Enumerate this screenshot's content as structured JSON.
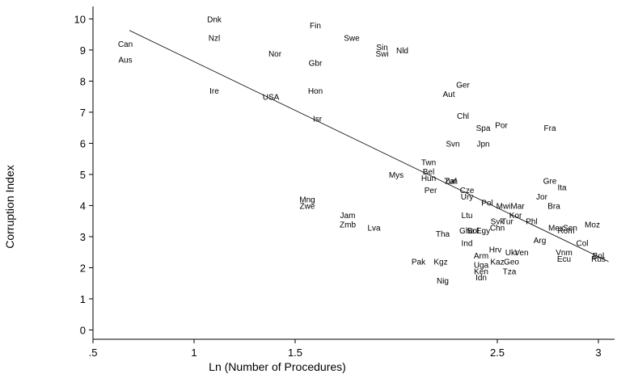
{
  "chart_data": {
    "type": "scatter",
    "title": "",
    "xlabel": "Ln (Number of Procedures)",
    "ylabel": "Corruption Index",
    "xlim": [
      0.5,
      3.08
    ],
    "ylim": [
      -0.3,
      10.4
    ],
    "x_ticks": [
      ".5",
      "1",
      "1.5",
      "2.5",
      "3"
    ],
    "y_ticks": [
      "0",
      "1",
      "2",
      "3",
      "4",
      "5",
      "6",
      "7",
      "8",
      "9",
      "10"
    ],
    "grid": false,
    "legend": "none",
    "fit_line": {
      "x": [
        0.68,
        3.05
      ],
      "y": [
        9.63,
        2.2
      ]
    },
    "points": [
      {
        "label": "Dnk",
        "x": 1.1,
        "y": 10.0
      },
      {
        "label": "Fin",
        "x": 1.6,
        "y": 9.8
      },
      {
        "label": "Nzl",
        "x": 1.1,
        "y": 9.4
      },
      {
        "label": "Swe",
        "x": 1.78,
        "y": 9.4
      },
      {
        "label": "Can",
        "x": 0.66,
        "y": 9.2
      },
      {
        "label": "Sin",
        "x": 1.93,
        "y": 9.1
      },
      {
        "label": "Swi",
        "x": 1.93,
        "y": 8.9
      },
      {
        "label": "Nld",
        "x": 2.03,
        "y": 9.0
      },
      {
        "label": "Nor",
        "x": 1.4,
        "y": 8.9
      },
      {
        "label": "Aus",
        "x": 0.66,
        "y": 8.7
      },
      {
        "label": "Gbr",
        "x": 1.6,
        "y": 8.6
      },
      {
        "label": "Ger",
        "x": 2.33,
        "y": 7.9
      },
      {
        "label": "Ire",
        "x": 1.1,
        "y": 7.7
      },
      {
        "label": "Hon",
        "x": 1.6,
        "y": 7.7
      },
      {
        "label": "USA",
        "x": 1.38,
        "y": 7.5
      },
      {
        "label": "Aut",
        "x": 2.26,
        "y": 7.6
      },
      {
        "label": "Chl",
        "x": 2.33,
        "y": 6.9
      },
      {
        "label": "Isr",
        "x": 1.61,
        "y": 6.8
      },
      {
        "label": "Spa",
        "x": 2.43,
        "y": 6.5
      },
      {
        "label": "Por",
        "x": 2.52,
        "y": 6.6
      },
      {
        "label": "Fra",
        "x": 2.76,
        "y": 6.5
      },
      {
        "label": "Svn",
        "x": 2.28,
        "y": 6.0
      },
      {
        "label": "Jpn",
        "x": 2.43,
        "y": 6.0
      },
      {
        "label": "Twn",
        "x": 2.16,
        "y": 5.4
      },
      {
        "label": "Bel",
        "x": 2.16,
        "y": 5.1
      },
      {
        "label": "Hun",
        "x": 2.16,
        "y": 4.9
      },
      {
        "label": "Mys",
        "x": 2.0,
        "y": 5.0
      },
      {
        "label": "Zaf",
        "x": 2.27,
        "y": 4.8
      },
      {
        "label": "Tun",
        "x": 2.27,
        "y": 4.8
      },
      {
        "label": "Gre",
        "x": 2.76,
        "y": 4.8
      },
      {
        "label": "Ita",
        "x": 2.82,
        "y": 4.6
      },
      {
        "label": "Cze",
        "x": 2.35,
        "y": 4.5
      },
      {
        "label": "Per",
        "x": 2.17,
        "y": 4.5
      },
      {
        "label": "Ury",
        "x": 2.35,
        "y": 4.3
      },
      {
        "label": "Jor",
        "x": 2.72,
        "y": 4.3
      },
      {
        "label": "Pol",
        "x": 2.45,
        "y": 4.1
      },
      {
        "label": "Mng",
        "x": 1.56,
        "y": 4.2
      },
      {
        "label": "Mwi",
        "x": 2.53,
        "y": 4.0
      },
      {
        "label": "Mar",
        "x": 2.6,
        "y": 4.0
      },
      {
        "label": "Bra",
        "x": 2.78,
        "y": 4.0
      },
      {
        "label": "Zwe",
        "x": 1.56,
        "y": 4.0
      },
      {
        "label": "Kor",
        "x": 2.59,
        "y": 3.7
      },
      {
        "label": "Jam",
        "x": 1.76,
        "y": 3.7
      },
      {
        "label": "Ltu",
        "x": 2.35,
        "y": 3.7
      },
      {
        "label": "Phl",
        "x": 2.67,
        "y": 3.5
      },
      {
        "label": "Svk",
        "x": 2.5,
        "y": 3.5
      },
      {
        "label": "Tur",
        "x": 2.55,
        "y": 3.5
      },
      {
        "label": "Zmb",
        "x": 1.76,
        "y": 3.4
      },
      {
        "label": "Lva",
        "x": 1.89,
        "y": 3.3
      },
      {
        "label": "Chn",
        "x": 2.5,
        "y": 3.3
      },
      {
        "label": "Moz",
        "x": 2.97,
        "y": 3.4
      },
      {
        "label": "Mex",
        "x": 2.79,
        "y": 3.3
      },
      {
        "label": "Sen",
        "x": 2.86,
        "y": 3.3
      },
      {
        "label": "Rom",
        "x": 2.84,
        "y": 3.2
      },
      {
        "label": "Tha",
        "x": 2.23,
        "y": 3.1
      },
      {
        "label": "Gha",
        "x": 2.35,
        "y": 3.2
      },
      {
        "label": "Bol",
        "x": 2.38,
        "y": 3.2
      },
      {
        "label": "Egy",
        "x": 2.43,
        "y": 3.2
      },
      {
        "label": "Arg",
        "x": 2.71,
        "y": 2.9
      },
      {
        "label": "Col",
        "x": 2.92,
        "y": 2.8
      },
      {
        "label": "Ind",
        "x": 2.35,
        "y": 2.8
      },
      {
        "label": "Hrv",
        "x": 2.49,
        "y": 2.6
      },
      {
        "label": "Ukr",
        "x": 2.57,
        "y": 2.5
      },
      {
        "label": "Ven",
        "x": 2.62,
        "y": 2.5
      },
      {
        "label": "Vnm",
        "x": 2.83,
        "y": 2.5
      },
      {
        "label": "Arm",
        "x": 2.42,
        "y": 2.4
      },
      {
        "label": "Kaz",
        "x": 2.5,
        "y": 2.2
      },
      {
        "label": "Geo",
        "x": 2.57,
        "y": 2.2
      },
      {
        "label": "Ecu",
        "x": 2.83,
        "y": 2.3
      },
      {
        "label": "Bol",
        "x": 3.0,
        "y": 2.4
      },
      {
        "label": "Rus",
        "x": 3.0,
        "y": 2.3
      },
      {
        "label": "Pak",
        "x": 2.11,
        "y": 2.2
      },
      {
        "label": "Kgz",
        "x": 2.22,
        "y": 2.2
      },
      {
        "label": "Uga",
        "x": 2.42,
        "y": 2.1
      },
      {
        "label": "Ken",
        "x": 2.42,
        "y": 1.9
      },
      {
        "label": "Tza",
        "x": 2.56,
        "y": 1.9
      },
      {
        "label": "Idn",
        "x": 2.42,
        "y": 1.7
      },
      {
        "label": "Nig",
        "x": 2.23,
        "y": 1.6
      }
    ]
  }
}
